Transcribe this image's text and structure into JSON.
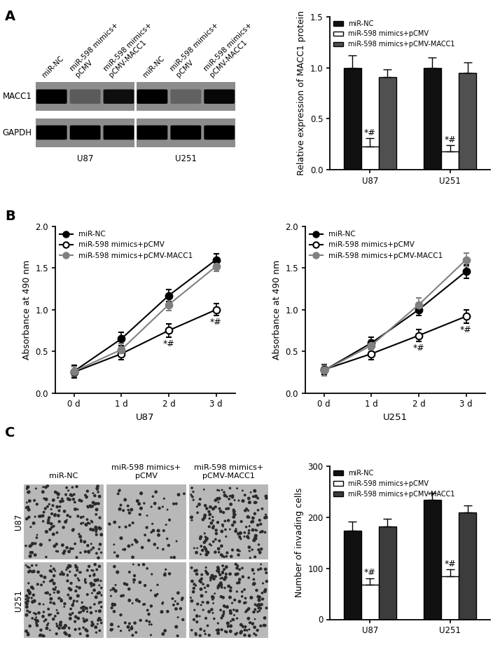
{
  "panel_labels": [
    "A",
    "B",
    "C"
  ],
  "blot": {
    "lanes": [
      "miR-NC",
      "miR-598 mimics+ pCMV",
      "miR-598 mimics+ pCMV-MACC1"
    ],
    "cell_lines": [
      "U87",
      "U251"
    ],
    "rows": [
      {
        "name": "MACC1",
        "intensity": [
          1.0,
          0.35,
          0.9,
          1.0,
          0.3,
          0.95
        ]
      },
      {
        "name": "GAPDH",
        "intensity": [
          1.0,
          1.0,
          1.0,
          1.0,
          1.0,
          1.0
        ]
      }
    ]
  },
  "invasion_images": {
    "columns": [
      "miR-NC",
      "miR-598 mimics+ pCMV",
      "miR-598 mimics+ pCMV-MACC1"
    ],
    "rows": [
      "U87",
      "U251"
    ]
  },
  "chart_data": [
    {
      "type": "bar",
      "y_label": "Relative expression of MACC1 protein",
      "categories": [
        "U87",
        "U251"
      ],
      "ylim": [
        0,
        1.5
      ],
      "yticks": [
        {
          "value": 0,
          "label": "0.0"
        },
        {
          "value": 0.5,
          "label": "0.5"
        },
        {
          "value": 1.0,
          "label": "1.0"
        },
        {
          "value": 1.5,
          "label": "1.5"
        }
      ],
      "legend": "upper left",
      "series": [
        {
          "name": "miR-NC",
          "color": "#111111",
          "values": [
            1.0,
            1.0
          ],
          "errors": [
            0.12,
            0.1
          ]
        },
        {
          "name": "miR-598 mimics+pCMV",
          "color": "#ffffff",
          "values": [
            0.23,
            0.18
          ],
          "errors": [
            0.08,
            0.06
          ]
        },
        {
          "name": "miR-598 mimics+pCMV-MACC1",
          "color": "#505050",
          "values": [
            0.91,
            0.95
          ],
          "errors": [
            0.07,
            0.1
          ]
        }
      ],
      "annotations": [
        {
          "text": "*#",
          "series": 1,
          "index": 0
        },
        {
          "text": "*#",
          "series": 1,
          "index": 1
        }
      ]
    },
    {
      "type": "line",
      "y_label": "Absorbance at 490 nm",
      "x_label": "U87",
      "categories": [
        "0 d",
        "1 d",
        "2 d",
        "3 d"
      ],
      "ylim": [
        0,
        2.0
      ],
      "yticks": [
        {
          "value": 0,
          "label": "0.0"
        },
        {
          "value": 0.5,
          "label": "0.5"
        },
        {
          "value": 1.0,
          "label": "1.0"
        },
        {
          "value": 1.5,
          "label": "1.5"
        },
        {
          "value": 2.0,
          "label": "2.0"
        }
      ],
      "legend": "upper left",
      "series": [
        {
          "name": "miR-NC",
          "color": "#000000",
          "marker": "circle",
          "values": [
            0.26,
            0.65,
            1.17,
            1.6
          ],
          "errors": [
            0.07,
            0.08,
            0.07,
            0.07
          ]
        },
        {
          "name": "miR-598 mimics+pCMV",
          "color": "#000000",
          "marker": "open_circle",
          "values": [
            0.25,
            0.47,
            0.75,
            1.0
          ],
          "errors": [
            0.07,
            0.07,
            0.08,
            0.07
          ]
        },
        {
          "name": "miR-598 mimics+pCMV-MACC1",
          "color": "#808080",
          "marker": "circle",
          "values": [
            0.26,
            0.52,
            1.06,
            1.52
          ],
          "errors": [
            0.06,
            0.07,
            0.07,
            0.06
          ]
        }
      ],
      "annotations": [
        {
          "text": "*#",
          "series": 1,
          "index": 2
        },
        {
          "text": "*#",
          "series": 1,
          "index": 3
        }
      ]
    },
    {
      "type": "line",
      "y_label": "Absorbance at 490 nm",
      "x_label": "U251",
      "categories": [
        "0 d",
        "1 d",
        "2 d",
        "3 d"
      ],
      "ylim": [
        0,
        2.0
      ],
      "yticks": [
        {
          "value": 0,
          "label": "0.0"
        },
        {
          "value": 0.5,
          "label": "0.5"
        },
        {
          "value": 1.0,
          "label": "1.0"
        },
        {
          "value": 1.5,
          "label": "1.5"
        },
        {
          "value": 2.0,
          "label": "2.0"
        }
      ],
      "legend": "upper left",
      "series": [
        {
          "name": "miR-NC",
          "color": "#000000",
          "marker": "circle",
          "values": [
            0.27,
            0.6,
            1.0,
            1.46
          ],
          "errors": [
            0.06,
            0.07,
            0.07,
            0.08
          ]
        },
        {
          "name": "miR-598 mimics+pCMV",
          "color": "#000000",
          "marker": "open_circle",
          "values": [
            0.28,
            0.47,
            0.69,
            0.92
          ],
          "errors": [
            0.06,
            0.07,
            0.07,
            0.08
          ]
        },
        {
          "name": "miR-598 mimics+pCMV-MACC1",
          "color": "#808080",
          "marker": "circle",
          "values": [
            0.27,
            0.57,
            1.06,
            1.6
          ],
          "errors": [
            0.06,
            0.07,
            0.08,
            0.08
          ]
        }
      ],
      "annotations": [
        {
          "text": "*#",
          "series": 1,
          "index": 2
        },
        {
          "text": "*#",
          "series": 1,
          "index": 3
        }
      ]
    },
    {
      "type": "bar",
      "y_label": "Number of invading cells",
      "categories": [
        "U87",
        "U251"
      ],
      "ylim": [
        0,
        300
      ],
      "yticks": [
        0,
        100,
        200,
        300
      ],
      "legend": "upper left",
      "series": [
        {
          "name": "miR-NC",
          "color": "#111111",
          "values": [
            174,
            234
          ],
          "errors": [
            18,
            14
          ]
        },
        {
          "name": "miR-598 mimics+pCMV",
          "color": "#ffffff",
          "values": [
            68,
            85
          ],
          "errors": [
            13,
            13
          ]
        },
        {
          "name": "miR-598 mimics+pCMV-MACC1",
          "color": "#3c3c3c",
          "values": [
            182,
            210
          ],
          "errors": [
            15,
            13
          ]
        }
      ],
      "annotations": [
        {
          "text": "*#",
          "series": 1,
          "index": 0
        },
        {
          "text": "*#",
          "series": 1,
          "index": 1
        }
      ]
    }
  ]
}
